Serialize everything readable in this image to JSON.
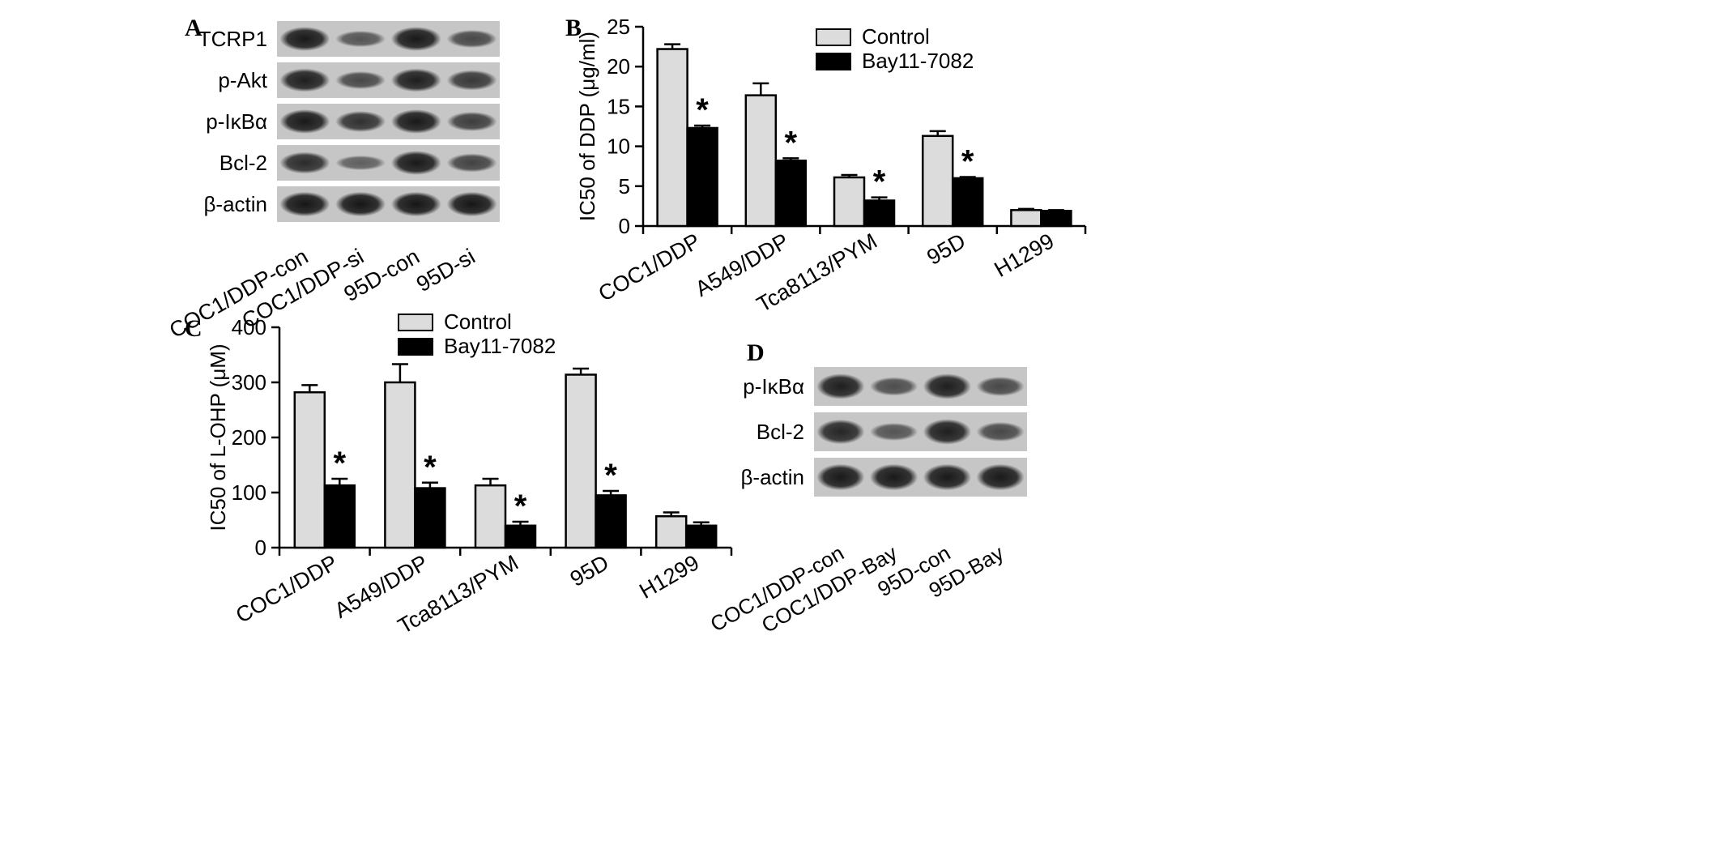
{
  "panels": {
    "a": "A",
    "b": "B",
    "c": "C",
    "d": "D"
  },
  "blot_a": {
    "rows": [
      {
        "label": "TCRP1",
        "intensities": [
          0.95,
          0.45,
          0.95,
          0.55
        ]
      },
      {
        "label": "p-Akt",
        "intensities": [
          0.9,
          0.55,
          0.9,
          0.7
        ]
      },
      {
        "label": "p-IκBα",
        "intensities": [
          0.95,
          0.75,
          0.95,
          0.65
        ]
      },
      {
        "label": "Bcl-2",
        "intensities": [
          0.8,
          0.35,
          0.95,
          0.6
        ]
      },
      {
        "label": "β-actin",
        "intensities": [
          0.98,
          0.98,
          0.98,
          0.98
        ]
      }
    ],
    "lanes": [
      "COC1/DDP-con",
      "COC1/DDP-si",
      "95D-con",
      "95D-si"
    ]
  },
  "blot_d": {
    "rows": [
      {
        "label": "p-IκBα",
        "intensities": [
          0.9,
          0.5,
          0.9,
          0.55
        ]
      },
      {
        "label": "Bcl-2",
        "intensities": [
          0.85,
          0.45,
          0.9,
          0.55
        ]
      },
      {
        "label": "β-actin",
        "intensities": [
          0.95,
          0.95,
          0.95,
          0.95
        ]
      }
    ],
    "lanes": [
      "COC1/DDP-con",
      "COC1/DDP-Bay",
      "95D-con",
      "95D-Bay"
    ]
  },
  "colors": {
    "control": "#dcdcdc",
    "treated": "#000000",
    "blot_bg": "#c6c6c6",
    "band": "#141414"
  },
  "chart_data": [
    {
      "type": "bar",
      "panel": "B",
      "categories": [
        "COC1/DDP",
        "A549/DDP",
        "Tca8113/PYM",
        "95D",
        "H1299"
      ],
      "ylabel": "IC50 of DDP (μg/ml)",
      "ylim": [
        0,
        25
      ],
      "yticks": [
        0,
        5,
        10,
        15,
        20,
        25
      ],
      "legend_position": "top-right",
      "series": [
        {
          "name": "Control",
          "values": [
            22.2,
            16.4,
            6.1,
            11.3,
            2.0
          ],
          "errors": [
            0.6,
            1.5,
            0.3,
            0.6,
            0.15
          ]
        },
        {
          "name": "Bay11-7082",
          "values": [
            12.3,
            8.2,
            3.2,
            6.0,
            1.9
          ],
          "errors": [
            0.3,
            0.3,
            0.4,
            0.15,
            0.1
          ]
        }
      ],
      "significance": [
        true,
        true,
        true,
        true,
        false
      ],
      "significance_marker": "*"
    },
    {
      "type": "bar",
      "panel": "C",
      "categories": [
        "COC1/DDP",
        "A549/DDP",
        "Tca8113/PYM",
        "95D",
        "H1299"
      ],
      "ylabel": "IC50 of L-OHP (μM)",
      "ylim": [
        0,
        400
      ],
      "yticks": [
        0,
        100,
        200,
        300,
        400
      ],
      "legend_position": "top",
      "series": [
        {
          "name": "Control",
          "values": [
            282,
            300,
            113,
            314,
            57
          ],
          "errors": [
            13,
            33,
            12,
            11,
            7
          ]
        },
        {
          "name": "Bay11-7082",
          "values": [
            113,
            108,
            40,
            95,
            40
          ],
          "errors": [
            12,
            10,
            7,
            8,
            6
          ]
        }
      ],
      "significance": [
        true,
        true,
        true,
        true,
        false
      ],
      "significance_marker": "*"
    }
  ]
}
